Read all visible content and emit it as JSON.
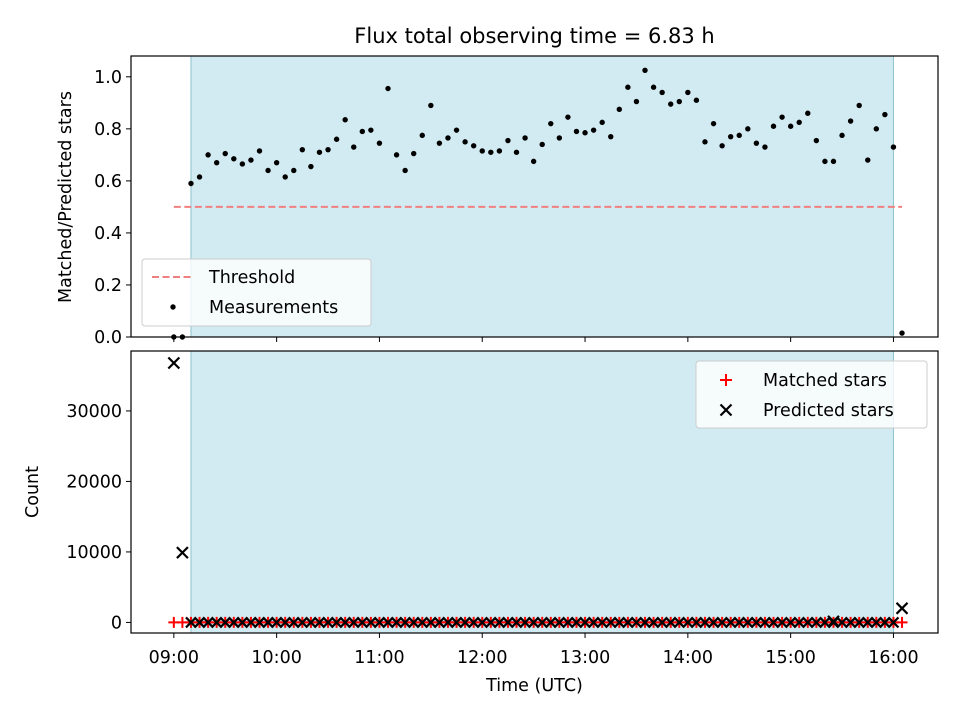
{
  "figure": {
    "title": "Flux total observing time = 6.83 h"
  },
  "chart_data": [
    {
      "type": "scatter",
      "ylabel": "Matched/Predicted stars",
      "xlabel": "",
      "xlim": [
        "08:35",
        "16:26"
      ],
      "ylim": [
        0,
        1.08
      ],
      "yticks": [
        0.0,
        0.2,
        0.4,
        0.6,
        0.8,
        1.0
      ],
      "ytick_labels": [
        "0.0",
        "0.2",
        "0.4",
        "0.6",
        "0.8",
        "1.0"
      ],
      "shaded_span": {
        "start": "09:10",
        "end": "16:00",
        "color": "#add8e6"
      },
      "legend": {
        "placement": "lower-left",
        "entries": [
          {
            "label": "Threshold",
            "marker": "dashed-line",
            "color": "#f08080"
          },
          {
            "label": "Measurements",
            "marker": "dot",
            "color": "#000000"
          }
        ]
      },
      "series": [
        {
          "name": "Threshold",
          "style": "dashed-line",
          "color": "#f08080",
          "x": [
            "09:00",
            "16:05"
          ],
          "y": [
            0.5,
            0.5
          ]
        },
        {
          "name": "Measurements",
          "style": "dot",
          "color": "#000000",
          "points": [
            [
              "09:00",
              0.0
            ],
            [
              "09:05",
              0.0
            ],
            [
              "09:10",
              0.59
            ],
            [
              "09:15",
              0.615
            ],
            [
              "09:20",
              0.7
            ],
            [
              "09:25",
              0.67
            ],
            [
              "09:30",
              0.705
            ],
            [
              "09:35",
              0.685
            ],
            [
              "09:40",
              0.665
            ],
            [
              "09:45",
              0.68
            ],
            [
              "09:50",
              0.715
            ],
            [
              "09:55",
              0.64
            ],
            [
              "10:00",
              0.67
            ],
            [
              "10:05",
              0.615
            ],
            [
              "10:10",
              0.64
            ],
            [
              "10:15",
              0.72
            ],
            [
              "10:20",
              0.655
            ],
            [
              "10:25",
              0.71
            ],
            [
              "10:30",
              0.72
            ],
            [
              "10:35",
              0.76
            ],
            [
              "10:40",
              0.835
            ],
            [
              "10:45",
              0.73
            ],
            [
              "10:50",
              0.79
            ],
            [
              "10:55",
              0.795
            ],
            [
              "11:00",
              0.745
            ],
            [
              "11:05",
              0.955
            ],
            [
              "11:10",
              0.7
            ],
            [
              "11:15",
              0.64
            ],
            [
              "11:20",
              0.705
            ],
            [
              "11:25",
              0.775
            ],
            [
              "11:30",
              0.89
            ],
            [
              "11:35",
              0.745
            ],
            [
              "11:40",
              0.765
            ],
            [
              "11:45",
              0.795
            ],
            [
              "11:50",
              0.75
            ],
            [
              "11:55",
              0.735
            ],
            [
              "12:00",
              0.715
            ],
            [
              "12:05",
              0.71
            ],
            [
              "12:10",
              0.715
            ],
            [
              "12:15",
              0.755
            ],
            [
              "12:20",
              0.71
            ],
            [
              "12:25",
              0.765
            ],
            [
              "12:30",
              0.675
            ],
            [
              "12:35",
              0.74
            ],
            [
              "12:40",
              0.82
            ],
            [
              "12:45",
              0.765
            ],
            [
              "12:50",
              0.845
            ],
            [
              "12:55",
              0.79
            ],
            [
              "13:00",
              0.785
            ],
            [
              "13:05",
              0.795
            ],
            [
              "13:10",
              0.825
            ],
            [
              "13:15",
              0.77
            ],
            [
              "13:20",
              0.875
            ],
            [
              "13:25",
              0.96
            ],
            [
              "13:30",
              0.905
            ],
            [
              "13:35",
              1.025
            ],
            [
              "13:40",
              0.96
            ],
            [
              "13:45",
              0.94
            ],
            [
              "13:50",
              0.895
            ],
            [
              "13:55",
              0.905
            ],
            [
              "14:00",
              0.94
            ],
            [
              "14:05",
              0.91
            ],
            [
              "14:10",
              0.75
            ],
            [
              "14:15",
              0.82
            ],
            [
              "14:20",
              0.735
            ],
            [
              "14:25",
              0.77
            ],
            [
              "14:30",
              0.775
            ],
            [
              "14:35",
              0.8
            ],
            [
              "14:40",
              0.745
            ],
            [
              "14:45",
              0.73
            ],
            [
              "14:50",
              0.81
            ],
            [
              "14:55",
              0.845
            ],
            [
              "15:00",
              0.81
            ],
            [
              "15:05",
              0.825
            ],
            [
              "15:10",
              0.86
            ],
            [
              "15:15",
              0.755
            ],
            [
              "15:20",
              0.675
            ],
            [
              "15:25",
              0.675
            ],
            [
              "15:30",
              0.775
            ],
            [
              "15:35",
              0.83
            ],
            [
              "15:40",
              0.89
            ],
            [
              "15:45",
              0.68
            ],
            [
              "15:50",
              0.8
            ],
            [
              "15:55",
              0.855
            ],
            [
              "16:00",
              0.73
            ],
            [
              "16:05",
              0.015
            ]
          ]
        }
      ]
    },
    {
      "type": "scatter",
      "ylabel": "Count",
      "xlabel": "Time (UTC)",
      "xlim": [
        "08:35",
        "16:26"
      ],
      "ylim": [
        -1500,
        38500
      ],
      "yticks": [
        0,
        10000,
        20000,
        30000
      ],
      "ytick_labels": [
        "0",
        "10000",
        "20000",
        "30000"
      ],
      "xticks": [
        "09:00",
        "10:00",
        "11:00",
        "12:00",
        "13:00",
        "14:00",
        "15:00",
        "16:00"
      ],
      "xtick_labels": [
        "09:00",
        "10:00",
        "11:00",
        "12:00",
        "13:00",
        "14:00",
        "15:00",
        "16:00"
      ],
      "shaded_span": {
        "start": "09:10",
        "end": "16:00",
        "color": "#add8e6"
      },
      "legend": {
        "placement": "top-right",
        "entries": [
          {
            "label": "Matched stars",
            "marker": "plus",
            "color": "#ff0000"
          },
          {
            "label": "Predicted stars",
            "marker": "x",
            "color": "#000000"
          }
        ]
      },
      "series": [
        {
          "name": "Matched stars",
          "marker": "plus",
          "color": "#ff0000",
          "x_start": "09:00",
          "x_end": "16:05",
          "x_step_minutes": 5,
          "values_note": "all values near 0",
          "y_constant": 0
        },
        {
          "name": "Predicted stars",
          "marker": "x",
          "color": "#000000",
          "points": [
            [
              "09:00",
              36800
            ],
            [
              "09:05",
              9900
            ],
            [
              "15:25",
              150
            ],
            [
              "16:05",
              2000
            ]
          ],
          "x_start": "09:10",
          "x_end": "16:00",
          "x_step_minutes": 5,
          "y_constant": 0
        }
      ]
    }
  ]
}
